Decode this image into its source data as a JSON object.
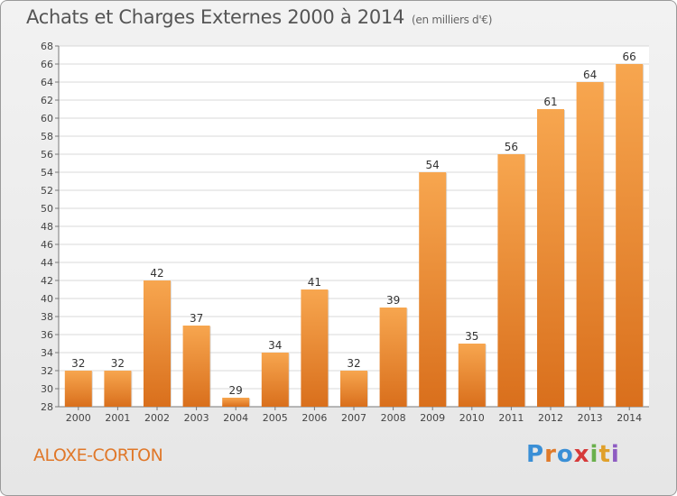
{
  "header": {
    "title": "Achats et Charges Externes 2000 à 2014",
    "unit": "(en milliers d'€)"
  },
  "footer": {
    "commune": "ALOXE-CORTON",
    "logo_letters": [
      "P",
      "r",
      "o",
      "x",
      "i",
      "t",
      "i"
    ],
    "logo_colors": [
      "#3a8fd6",
      "#e07a2a",
      "#3a8fd6",
      "#d63a3a",
      "#6ab04c",
      "#e0a02a",
      "#8e5cc2"
    ]
  },
  "chart_data": {
    "type": "bar",
    "title": "Achats et Charges Externes 2000 à 2014",
    "subtitle": "(en milliers d'€)",
    "categories": [
      "2000",
      "2001",
      "2002",
      "2003",
      "2004",
      "2005",
      "2006",
      "2007",
      "2008",
      "2009",
      "2010",
      "2011",
      "2012",
      "2013",
      "2014"
    ],
    "values": [
      32,
      32,
      42,
      37,
      29,
      34,
      41,
      32,
      39,
      54,
      35,
      56,
      61,
      64,
      66
    ],
    "ylim": [
      28,
      68
    ],
    "yticks": [
      28,
      30,
      32,
      34,
      36,
      38,
      40,
      42,
      44,
      46,
      48,
      50,
      52,
      54,
      56,
      58,
      60,
      62,
      64,
      66,
      68
    ],
    "grid": true,
    "bar_color_top": "#f7a64f",
    "bar_color_bottom": "#d96f1c"
  }
}
